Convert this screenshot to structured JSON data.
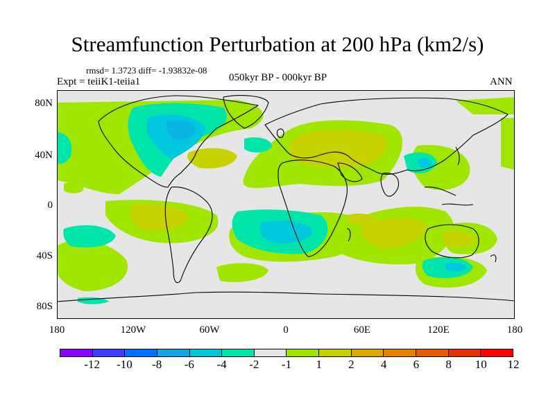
{
  "title": "Streamfunction Perturbation at 200 hPa (km2/s)",
  "stats_line": "rmsd= 1.3723  diff= -1.93832e-08",
  "experiment": "Expt = teiiK1-teiia1",
  "period": "050kyr BP - 000kyr BP",
  "season": "ANN",
  "colors": {
    "background": "#e6e6e6",
    "coastline": "#000000",
    "levels": [
      "#8c00ff",
      "#3d3dff",
      "#0070ff",
      "#14a5e6",
      "#00c8dc",
      "#00e6aa",
      "#e6e6e6",
      "#a0e600",
      "#c8d200",
      "#dcaa00",
      "#e68200",
      "#e65a00",
      "#e63200",
      "#ff0000"
    ]
  },
  "latitude_labels": [
    "80N",
    "40N",
    "0",
    "40S",
    "80S"
  ],
  "longitude_labels": [
    "180",
    "120W",
    "60W",
    "0",
    "60E",
    "120E",
    "180"
  ],
  "colorbar_labels": [
    "-12",
    "-10",
    "-8",
    "-6",
    "-4",
    "-2",
    "-1",
    "1",
    "2",
    "4",
    "6",
    "8",
    "10",
    "12"
  ]
}
